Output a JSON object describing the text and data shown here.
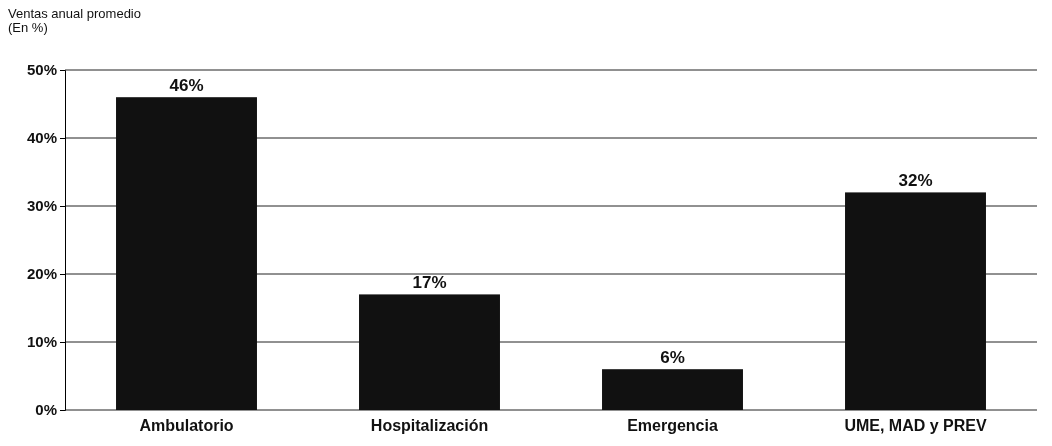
{
  "chart_data": {
    "type": "bar",
    "ylabel": "Ventas anual promedio\n(En %)",
    "categories": [
      "Ambulatorio",
      "Hospitalización",
      "Emergencia",
      "UME, MAD y PREV"
    ],
    "values": [
      46,
      17,
      6,
      32
    ],
    "color": "#111111",
    "value_labels": [
      "46%",
      "17%",
      "6%",
      "32%"
    ],
    "ylim": [
      0,
      50
    ],
    "yticks": [
      {
        "value": 0,
        "label": "0%"
      },
      {
        "value": 10,
        "label": "10%"
      },
      {
        "value": 20,
        "label": "20%"
      },
      {
        "value": 30,
        "label": "30%"
      },
      {
        "value": 40,
        "label": "40%"
      },
      {
        "value": 50,
        "label": "50%"
      }
    ],
    "grid": "y"
  }
}
